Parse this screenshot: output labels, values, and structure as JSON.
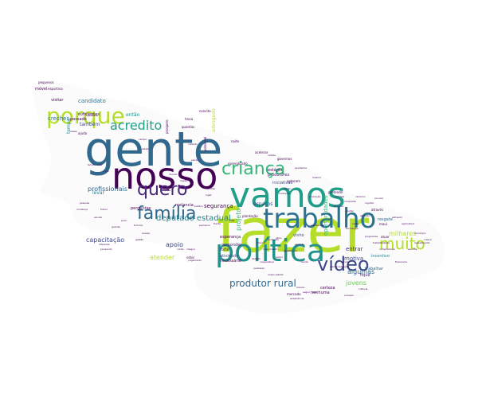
{
  "words": [
    {
      "text": "fazer",
      "color": "#b5de2b"
    },
    {
      "text": "gente",
      "color": "#31688e"
    },
    {
      "text": "nosso",
      "color": "#440154"
    },
    {
      "text": "vamos",
      "color": "#1f9e89"
    },
    {
      "text": "política",
      "color": "#21918c"
    },
    {
      "text": "trabalho",
      "color": "#2c728e"
    },
    {
      "text": "porque",
      "color": "#b5de2b"
    },
    {
      "text": "criança",
      "color": "#35b779"
    },
    {
      "text": "vídeo",
      "color": "#3e4989"
    },
    {
      "text": "família",
      "color": "#31688e"
    },
    {
      "text": "muito",
      "color": "#b5de2b"
    },
    {
      "text": "quero",
      "color": "#482878"
    },
    {
      "text": "acredito",
      "color": "#1f9e89"
    },
    {
      "text": "produtor rural",
      "color": "#31688e"
    },
    {
      "text": "deputado estadual",
      "color": "#26828e"
    },
    {
      "text": "milhares",
      "color": "#b5de2b"
    },
    {
      "text": "capacitação",
      "color": "#3e4989"
    },
    {
      "text": "profissionais",
      "color": "#31688e"
    },
    {
      "text": "algumas",
      "color": "#31688e"
    },
    {
      "text": "jovens",
      "color": "#6ece58"
    },
    {
      "text": "atender",
      "color": "#b5de2b"
    },
    {
      "text": "apoio",
      "color": "#3e4989"
    },
    {
      "text": "segurança",
      "color": "#440154"
    },
    {
      "text": "entrar",
      "color": "#482878"
    },
    {
      "text": "motiva",
      "color": "#3e4989"
    },
    {
      "text": "também",
      "color": "#3e4989"
    },
    {
      "text": "projeto",
      "color": "#35b779"
    },
    {
      "text": "creches",
      "color": "#2c728e"
    },
    {
      "text": "candidato",
      "color": "#2c728e"
    },
    {
      "text": "levar",
      "color": "#26828e"
    },
    {
      "text": "tempo",
      "color": "#21918c"
    },
    {
      "text": "então",
      "color": "#21918c"
    },
    {
      "text": "advogado",
      "color": "#b5de2b"
    },
    {
      "text": "espaços",
      "color": "#3e4989"
    },
    {
      "text": "oportunidades",
      "color": "#35b779"
    },
    {
      "text": "esperança",
      "color": "#440154"
    },
    {
      "text": "responder",
      "color": "#482878"
    },
    {
      "text": "atividade",
      "color": "#3e4989"
    },
    {
      "text": "incentivo",
      "color": "#26828e"
    },
    {
      "text": "trabalhar",
      "color": "#31688e"
    },
    {
      "text": "resgate",
      "color": "#31688e"
    },
    {
      "text": "fique",
      "color": "#482878"
    },
    {
      "text": "vinho",
      "color": "#3e4989"
    },
    {
      "text": "forte",
      "color": "#482878"
    },
    {
      "text": "necessário",
      "color": "#440154"
    },
    {
      "text": "iniciativas",
      "color": "#3e4989"
    },
    {
      "text": "produtores",
      "color": "#482878"
    },
    {
      "text": "estágio",
      "color": "#440154"
    },
    {
      "text": "certeza",
      "color": "#440154"
    },
    {
      "text": "nenhuma",
      "color": "#440154"
    },
    {
      "text": "atuar",
      "color": "#440154"
    },
    {
      "text": "melancia",
      "color": "#440154"
    },
    {
      "text": "perguntas",
      "color": "#440154"
    },
    {
      "text": "passado",
      "color": "#440154"
    },
    {
      "text": "suficientes",
      "color": "#440154"
    },
    {
      "text": "visitar",
      "color": "#440154"
    },
    {
      "text": "esportiva",
      "color": "#440154"
    },
    {
      "text": "móvel",
      "color": "#440154"
    },
    {
      "text": "pequenos",
      "color": "#440154"
    },
    {
      "text": "convite",
      "color": "#440154"
    },
    {
      "text": "quantas",
      "color": "#440154"
    },
    {
      "text": "troca",
      "color": "#440154"
    },
    {
      "text": "noite",
      "color": "#440154"
    },
    {
      "text": "optaram",
      "color": "#440154"
    },
    {
      "text": "aprendizado",
      "color": "#440154"
    },
    {
      "text": "através",
      "color": "#440154"
    },
    {
      "text": "setor",
      "color": "#440154"
    },
    {
      "text": "ajuda",
      "color": "#440154"
    },
    {
      "text": "nesse",
      "color": "#440154"
    },
    {
      "text": "pretende",
      "color": "#440154"
    },
    {
      "text": "plantação",
      "color": "#440154"
    },
    {
      "text": "governos",
      "color": "#440154"
    },
    {
      "text": "acelerar",
      "color": "#440154"
    },
    {
      "text": "mercado",
      "color": "#440154"
    },
    {
      "text": "fala",
      "color": "#440154"
    },
    {
      "text": "menos",
      "color": "#440154"
    },
    {
      "text": "seguir",
      "color": "#440154"
    },
    {
      "text": "mauí",
      "color": "#440154"
    },
    {
      "text": "mesmo",
      "color": "#440154"
    },
    {
      "text": "cidade",
      "color": "#440154"
    },
    {
      "text": "pandemia",
      "color": "#440154"
    },
    {
      "text": "potencial",
      "color": "#440154"
    },
    {
      "text": "prospero",
      "color": "#440154"
    },
    {
      "text": "público",
      "color": "#440154"
    },
    {
      "text": "conta",
      "color": "#440154"
    },
    {
      "text": "chegou",
      "color": "#440154"
    },
    {
      "text": "julgamento",
      "color": "#440154"
    },
    {
      "text": "programas",
      "color": "#440154"
    },
    {
      "text": "financeira",
      "color": "#440154"
    },
    {
      "text": "experiência",
      "color": "#440154"
    },
    {
      "text": "comercialização",
      "color": "#440154"
    },
    {
      "text": "escola",
      "color": "#440154"
    },
    {
      "text": "produção",
      "color": "#440154"
    },
    {
      "text": "geração",
      "color": "#440154"
    },
    {
      "text": "crescimento",
      "color": "#440154"
    },
    {
      "text": "sonho",
      "color": "#440154"
    },
    {
      "text": "tecnologia",
      "color": "#440154"
    },
    {
      "text": "vontade",
      "color": "#440154"
    },
    {
      "text": "cultural",
      "color": "#440154"
    },
    {
      "text": "sucesso",
      "color": "#440154"
    },
    {
      "text": "saúde",
      "color": "#440154"
    },
    {
      "text": "cuidado",
      "color": "#440154"
    },
    {
      "text": "região",
      "color": "#440154"
    },
    {
      "text": "equipe",
      "color": "#440154"
    },
    {
      "text": "mundo",
      "color": "#440154"
    },
    {
      "text": "estado",
      "color": "#440154"
    },
    {
      "text": "campo",
      "color": "#440154"
    },
    {
      "text": "dignidade",
      "color": "#440154"
    },
    {
      "text": "família rural",
      "color": "#440154"
    },
    {
      "text": "voto",
      "color": "#440154"
    },
    {
      "text": "parceiros",
      "color": "#440154"
    },
    {
      "text": "diferente",
      "color": "#440154"
    },
    {
      "text": "pensando",
      "color": "#440154"
    },
    {
      "text": "frente",
      "color": "#440154"
    },
    {
      "text": "desafio",
      "color": "#440154"
    },
    {
      "text": "cooperativa",
      "color": "#440154"
    },
    {
      "text": "ativo",
      "color": "#440154"
    },
    {
      "text": "assistência",
      "color": "#440154"
    },
    {
      "text": "renda",
      "color": "#440154"
    },
    {
      "text": "ideias",
      "color": "#440154"
    },
    {
      "text": "conhecer",
      "color": "#440154"
    },
    {
      "text": "lugar",
      "color": "#440154"
    },
    {
      "text": "mulher",
      "color": "#440154"
    },
    {
      "text": "educação",
      "color": "#440154"
    },
    {
      "text": "vida",
      "color": "#440154"
    },
    {
      "text": "pessoas",
      "color": "#440154"
    },
    {
      "text": "mudança",
      "color": "#440154"
    },
    {
      "text": "futuro",
      "color": "#440154"
    },
    {
      "text": "escuta",
      "color": "#440154"
    },
    {
      "text": "grande",
      "color": "#440154"
    },
    {
      "text": "povo",
      "color": "#440154"
    },
    {
      "text": "turismo",
      "color": "#440154"
    },
    {
      "text": "acesso",
      "color": "#440154"
    },
    {
      "text": "gestão",
      "color": "#440154"
    },
    {
      "text": "vinícola",
      "color": "#440154"
    },
    {
      "text": "realidade",
      "color": "#440154"
    },
    {
      "text": "nosso estado",
      "color": "#440154"
    },
    {
      "text": "precisamos",
      "color": "#440154"
    },
    {
      "text": "compromisso",
      "color": "#440154"
    },
    {
      "text": "município",
      "color": "#440154"
    },
    {
      "text": "investimento",
      "color": "#440154"
    },
    {
      "text": "escolha",
      "color": "#440154"
    },
    {
      "text": "cresce",
      "color": "#440154"
    },
    {
      "text": "agricultura",
      "color": "#440154"
    },
    {
      "text": "alimento",
      "color": "#440154"
    },
    {
      "text": "trabalhadores",
      "color": "#440154"
    },
    {
      "text": "atenção",
      "color": "#440154"
    },
    {
      "text": "união",
      "color": "#440154"
    },
    {
      "text": "mudar",
      "color": "#440154"
    },
    {
      "text": "obrigado",
      "color": "#440154"
    },
    {
      "text": "conquista",
      "color": "#440154"
    },
    {
      "text": "caminho",
      "color": "#440154"
    },
    {
      "text": "orgulho",
      "color": "#440154"
    },
    {
      "text": "recurso",
      "color": "#440154"
    }
  ]
}
